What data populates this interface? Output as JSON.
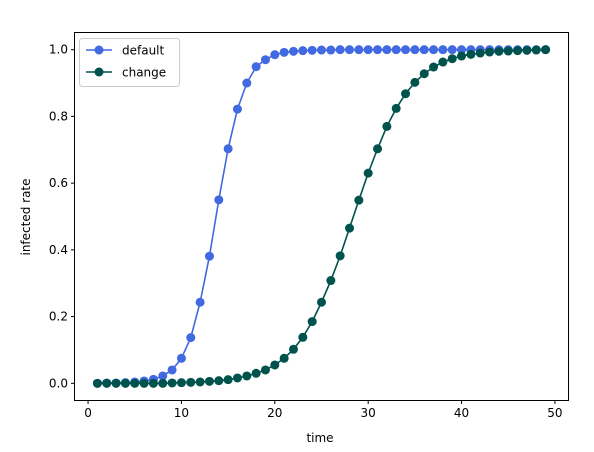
{
  "chart_data": {
    "type": "line",
    "title": "",
    "xlabel": "time",
    "ylabel": "infected rate",
    "xlim": [
      -1.4,
      51.4
    ],
    "ylim": [
      -0.05,
      1.05
    ],
    "xticks": [
      0,
      10,
      20,
      30,
      40,
      50
    ],
    "yticks": [
      0.0,
      0.2,
      0.4,
      0.6,
      0.8,
      1.0
    ],
    "ytick_labels": [
      "0.0",
      "0.2",
      "0.4",
      "0.6",
      "0.8",
      "1.0"
    ],
    "grid": false,
    "legend_placement": "upper-left",
    "x": [
      1,
      2,
      3,
      4,
      5,
      6,
      7,
      8,
      9,
      10,
      11,
      12,
      13,
      14,
      15,
      16,
      17,
      18,
      19,
      20,
      21,
      22,
      23,
      24,
      25,
      26,
      27,
      28,
      29,
      30,
      31,
      32,
      33,
      34,
      35,
      36,
      37,
      38,
      39,
      40,
      41,
      42,
      43,
      44,
      45,
      46,
      47,
      48,
      49
    ],
    "series": [
      {
        "name": "default",
        "color": "#4169e1",
        "values": [
          0.0,
          0.001,
          0.001,
          0.002,
          0.004,
          0.007,
          0.012,
          0.022,
          0.04,
          0.075,
          0.137,
          0.243,
          0.381,
          0.55,
          0.703,
          0.822,
          0.9,
          0.949,
          0.97,
          0.985,
          0.992,
          0.995,
          0.997,
          0.998,
          0.999,
          0.999,
          1.0,
          1.0,
          1.0,
          1.0,
          1.0,
          1.0,
          1.0,
          1.0,
          1.0,
          1.0,
          1.0,
          1.0,
          1.0,
          1.0,
          1.0,
          1.0,
          1.0,
          1.0,
          1.0,
          1.0,
          1.0,
          1.0,
          1.0
        ]
      },
      {
        "name": "change",
        "color": "#00524c",
        "values": [
          0.0,
          0.0,
          0.0,
          0.0,
          0.0,
          0.0,
          0.0,
          0.0,
          0.001,
          0.002,
          0.003,
          0.004,
          0.006,
          0.008,
          0.011,
          0.016,
          0.022,
          0.03,
          0.04,
          0.055,
          0.075,
          0.102,
          0.138,
          0.185,
          0.243,
          0.308,
          0.382,
          0.465,
          0.549,
          0.63,
          0.703,
          0.77,
          0.824,
          0.868,
          0.902,
          0.928,
          0.948,
          0.963,
          0.973,
          0.981,
          0.986,
          0.99,
          0.993,
          0.995,
          0.996,
          0.997,
          0.998,
          0.999,
          1.0
        ]
      }
    ]
  }
}
